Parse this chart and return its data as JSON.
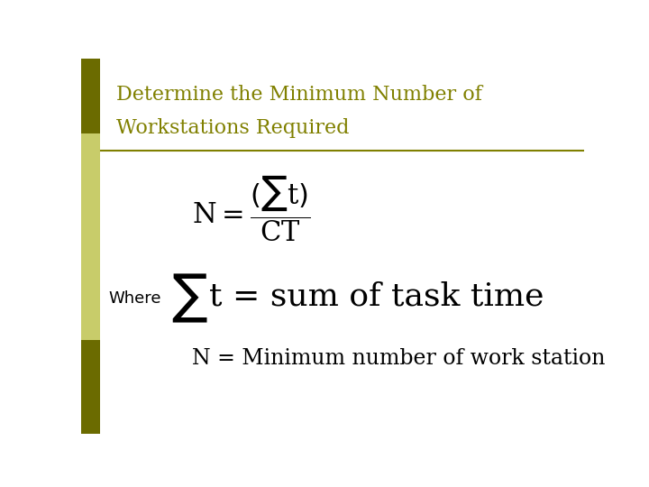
{
  "title_line1": "Determine the Minimum Number of",
  "title_line2": "Workstations Required",
  "title_color": "#808000",
  "background_color": "#FFFFFF",
  "left_bar_dark": "#6B6B00",
  "left_bar_light": "#C8CC6A",
  "separator_color": "#808000",
  "formula_color": "#000000",
  "where_label": "Where",
  "n_formula": "N = Minimum number of work station",
  "figsize": [
    7.2,
    5.4
  ],
  "dpi": 100
}
